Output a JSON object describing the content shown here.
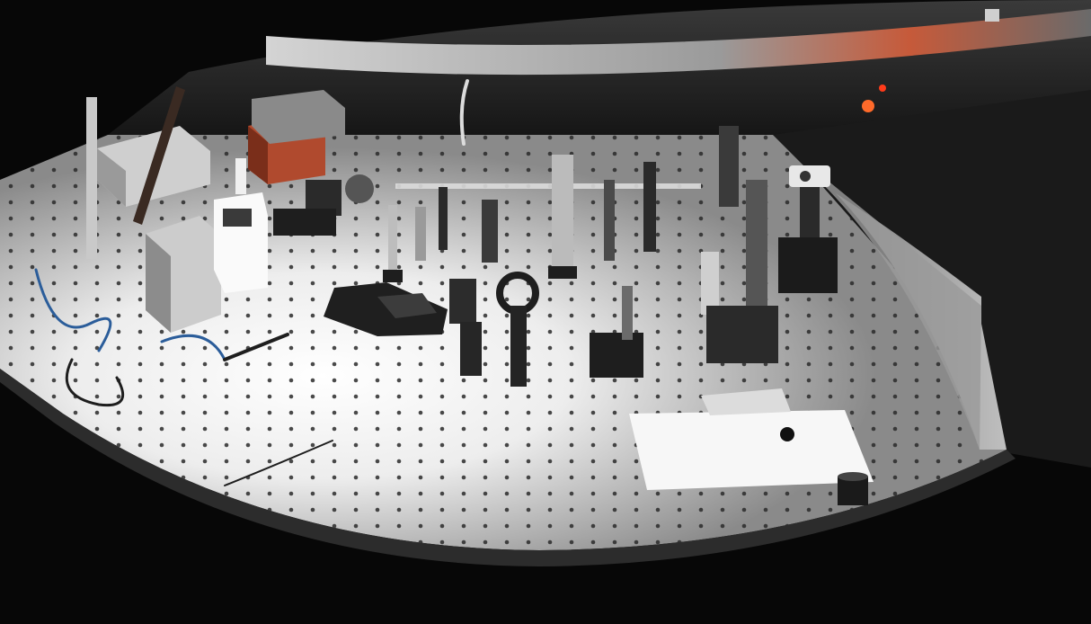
{
  "scene": {
    "kind": "photograph",
    "subject": "optical-lab-bench",
    "palette": {
      "background": "#070707",
      "table": "#8e8e8e",
      "table_lit": "#f4f4f4",
      "holes": "#2a2a2a",
      "rim": "#bdbdbd",
      "metal": "#6a6a6a",
      "dark_metal": "#1d1d1d",
      "copper_box": "#b04a2e",
      "indicator": "#ff6a2a"
    },
    "icons": [
      "optical-table",
      "laser-source",
      "mirror-mount",
      "lens-post",
      "camera-box",
      "power-supply"
    ]
  }
}
